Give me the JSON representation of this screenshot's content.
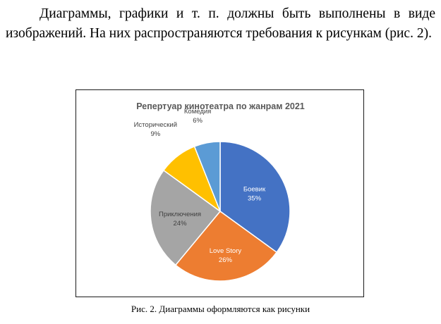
{
  "document": {
    "paragraph": "Диаграммы, графики и т. п. должны быть выполнены в виде изображений. На них распространяются требования к рисункам (рис. 2).",
    "caption": "Рис. 2. Диаграммы оформляются как рисунки"
  },
  "chart_data": {
    "type": "pie",
    "title": "Репертуар кинотеатра по жанрам 2021",
    "slices": [
      {
        "label": "Боевик",
        "value": 35,
        "value_label": "35%",
        "color": "#4472c4",
        "text_color": "#ffffff"
      },
      {
        "label": "Love Story",
        "value": 26,
        "value_label": "26%",
        "color": "#ed7d31",
        "text_color": "#ffffff"
      },
      {
        "label": "Приключения",
        "value": 24,
        "value_label": "24%",
        "color": "#a5a5a5",
        "text_color": "#404040"
      },
      {
        "label": "Исторический",
        "value": 9,
        "value_label": "9%",
        "color": "#ffc000",
        "text_color": "#404040"
      },
      {
        "label": "Комедия",
        "value": 6,
        "value_label": "6%",
        "color": "#5b9bd5",
        "text_color": "#404040"
      }
    ],
    "start": "top",
    "direction": "clockwise",
    "legend": "none"
  }
}
